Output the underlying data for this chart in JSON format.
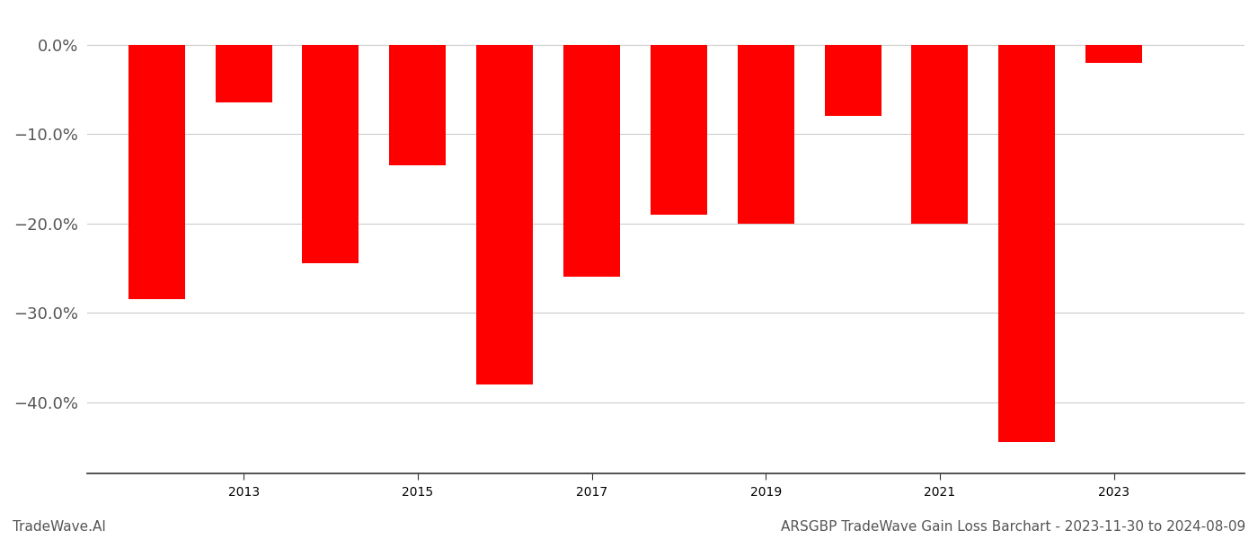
{
  "years": [
    2012,
    2013,
    2014,
    2015,
    2016,
    2017,
    2018,
    2019,
    2020,
    2021,
    2022,
    2023
  ],
  "values": [
    -0.285,
    -0.065,
    -0.245,
    -0.135,
    -0.38,
    -0.26,
    -0.19,
    -0.2,
    -0.08,
    -0.2,
    -0.445,
    -0.02
  ],
  "bar_color": "#ff0000",
  "background_color": "#ffffff",
  "grid_color": "#cccccc",
  "title": "ARSGBP TradeWave Gain Loss Barchart - 2023-11-30 to 2024-08-09",
  "watermark": "TradeWave.AI",
  "ylim": [
    -0.48,
    0.035
  ],
  "yticks": [
    0.0,
    -0.1,
    -0.2,
    -0.3,
    -0.4
  ],
  "ytick_labels": [
    "0.0%",
    "−10.0%",
    "−20.0%",
    "−30.0%",
    "−40.0%"
  ],
  "xlim": [
    2011.2,
    2024.5
  ],
  "xticks": [
    2013,
    2015,
    2017,
    2019,
    2021,
    2023
  ],
  "bar_width": 0.65
}
